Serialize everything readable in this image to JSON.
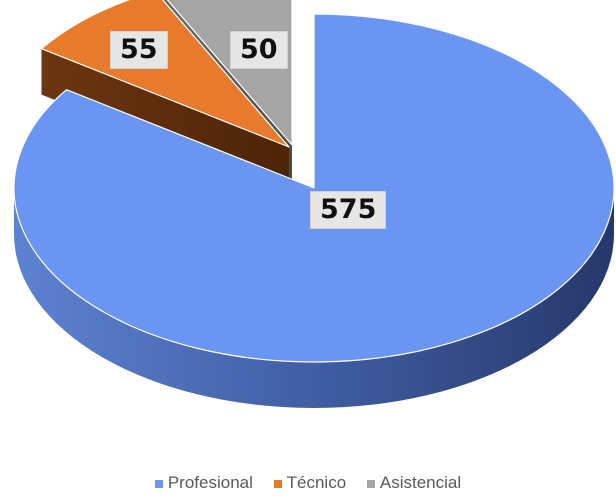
{
  "chart_data": {
    "type": "pie",
    "title": "",
    "categories": [
      "Profesional",
      "Técnico",
      "Asistencial"
    ],
    "values": [
      575,
      55,
      50
    ],
    "colors": [
      "#6b95f2",
      "#e87a2c",
      "#a5a5a5"
    ],
    "data_labels": [
      "575",
      "55",
      "50"
    ],
    "legend": {
      "placement": "bottom",
      "entries": [
        {
          "label": "Profesional",
          "color": "#6b95f2"
        },
        {
          "label": "Técnico",
          "color": "#e87a2c"
        },
        {
          "label": "Asistencial",
          "color": "#a5a5a5"
        }
      ]
    },
    "style": "3d-exploded"
  }
}
